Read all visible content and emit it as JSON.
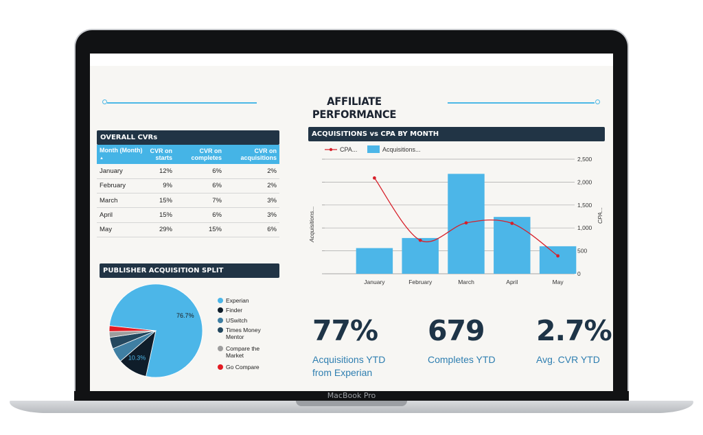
{
  "device": {
    "brand_label": "MacBook Pro"
  },
  "dashboard": {
    "title": "AFFILIATE PERFORMANCE"
  },
  "cvr_table": {
    "header": "OVERALL CVRs",
    "columns": [
      "Month (Month)",
      "CVR on starts",
      "CVR on completes",
      "CVR on acquisitions"
    ],
    "sort_indicator": "▲",
    "rows": [
      [
        "January",
        "12%",
        "6%",
        "2%"
      ],
      [
        "February",
        "9%",
        "6%",
        "2%"
      ],
      [
        "March",
        "15%",
        "7%",
        "3%"
      ],
      [
        "April",
        "15%",
        "6%",
        "3%"
      ],
      [
        "May",
        "29%",
        "15%",
        "6%"
      ]
    ]
  },
  "publisher_split": {
    "header": "PUBLISHER ACQUISITION SPLIT",
    "legend": [
      {
        "label": "Experian",
        "color": "#4cb6e8"
      },
      {
        "label": "Finder",
        "color": "#0f1d2a"
      },
      {
        "label": "USwitch",
        "color": "#3f7fa3"
      },
      {
        "label": "Times Money Mentor",
        "color": "#24485f"
      },
      {
        "label": "Compare the Market",
        "color": "#9d9d9d"
      },
      {
        "label": "Go Compare",
        "color": "#e31b23"
      }
    ],
    "slices": [
      76.7,
      10.3,
      5.0,
      4.0,
      2.0,
      2.0
    ],
    "data_labels": [
      "76.7%",
      "10.3%"
    ]
  },
  "chart": {
    "header": "ACQUISITIONS vs CPA BY MONTH",
    "legend_line": "CPA...",
    "legend_bar": "Acquisitions...",
    "left_axis_label": "Acquisitions...",
    "right_axis_label": "CPA...",
    "right_ticks": [
      "0",
      "500",
      "1,000",
      "1,500",
      "2,000",
      "2,500"
    ]
  },
  "chart_data": {
    "type": "bar",
    "categories": [
      "January",
      "February",
      "March",
      "April",
      "May"
    ],
    "series": [
      {
        "name": "Acquisitions...",
        "type": "bar",
        "values": [
          280,
          390,
          1090,
          620,
          300
        ]
      },
      {
        "name": "CPA...",
        "type": "line",
        "values": [
          2090,
          730,
          1110,
          1100,
          390
        ]
      }
    ],
    "ylim": [
      0,
      1250
    ],
    "y2lim": [
      0,
      2500
    ],
    "ylabel": "Acquisitions...",
    "y2label": "CPA...",
    "grid": true,
    "legend": "top-left",
    "colors": {
      "bar": "#4cb6e8",
      "line": "#d7202a"
    }
  },
  "kpis": [
    {
      "value": "77%",
      "label": "Acquisitions YTD from Experian"
    },
    {
      "value": "679",
      "label": "Completes YTD"
    },
    {
      "value": "2.7%",
      "label": "Avg. CVR YTD"
    }
  ]
}
